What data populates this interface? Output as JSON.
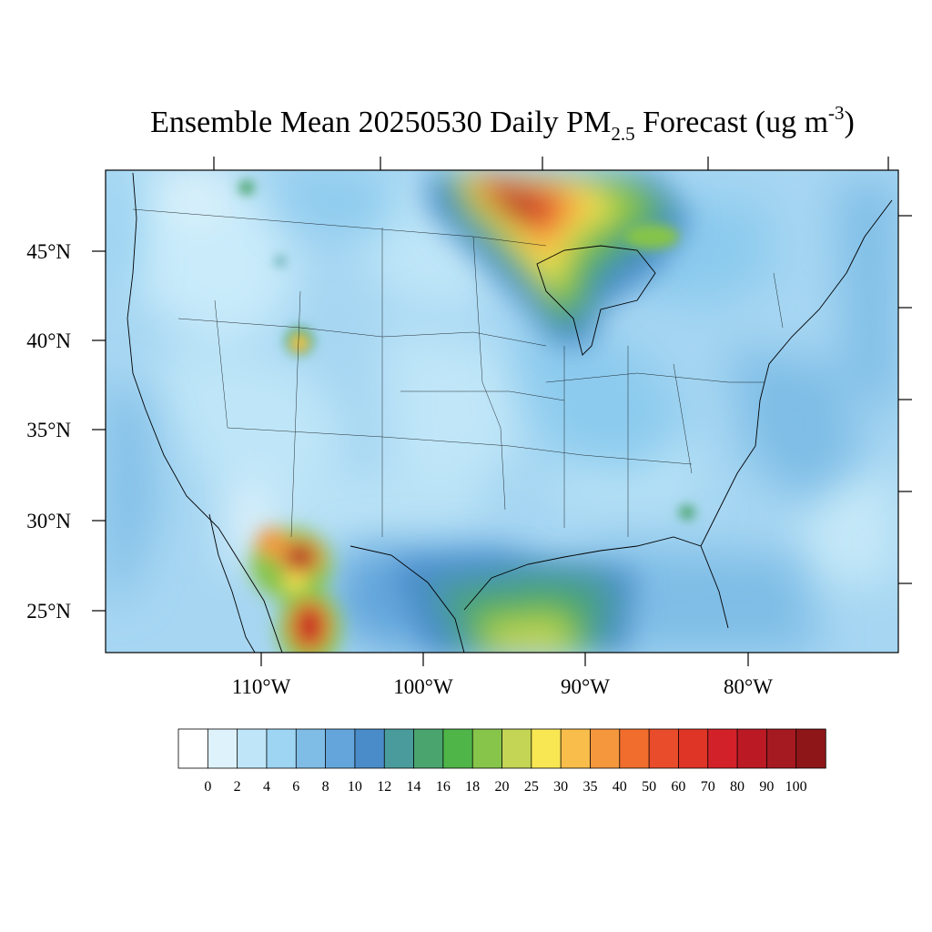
{
  "title": {
    "main": "Ensemble Mean 20250530 Daily PM",
    "sub": "2.5",
    "rest": " Forecast (ug m",
    "sup": "-3",
    "close": ")"
  },
  "axes": {
    "lat_labels": [
      "45°N",
      "40°N",
      "35°N",
      "30°N",
      "25°N"
    ],
    "lon_labels": [
      "110°W",
      "100°W",
      "90°W",
      "80°W"
    ]
  },
  "colorbar": {
    "colors": [
      "#ffffff",
      "#def2fb",
      "#bfe6f8",
      "#9dd5f3",
      "#7fbde6",
      "#64a6db",
      "#4a8cc9",
      "#4a9c9c",
      "#4aa46e",
      "#4fb548",
      "#86c44a",
      "#c4d455",
      "#f8e653",
      "#f8bd4a",
      "#f5973d",
      "#f06d2d",
      "#e84c2b",
      "#de3527",
      "#d22129",
      "#bb1a24",
      "#a51920",
      "#8e1618"
    ],
    "labels": [
      "0",
      "2",
      "4",
      "6",
      "8",
      "10",
      "12",
      "14",
      "16",
      "18",
      "20",
      "25",
      "30",
      "35",
      "40",
      "50",
      "60",
      "70",
      "80",
      "90",
      "100"
    ]
  },
  "map": {
    "background": "#a6d6f2",
    "hotspots": [
      {
        "id": "canada-smoke-plume",
        "level": "very-high"
      },
      {
        "id": "mexico-sierra-madre-fires",
        "level": "very-high"
      },
      {
        "id": "gulf-of-mexico-plume",
        "level": "moderate"
      },
      {
        "id": "wyoming-fire",
        "level": "high"
      }
    ]
  }
}
